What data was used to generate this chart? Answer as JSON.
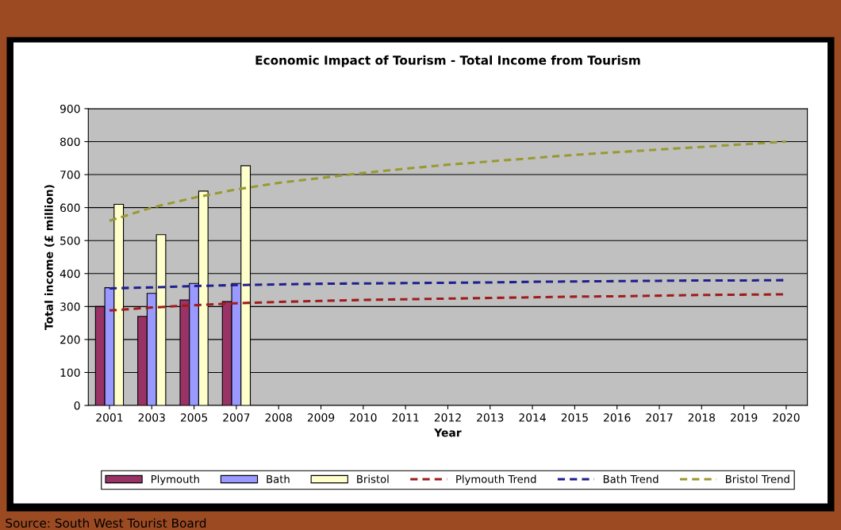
{
  "chart_data": {
    "type": "bar",
    "title": "Economic Impact of Tourism - Total Income from Tourism",
    "xlabel": "Year",
    "ylabel": "Total income (£ million)",
    "categories": [
      "2001",
      "2003",
      "2005",
      "2007",
      "2008",
      "2009",
      "2010",
      "2011",
      "2012",
      "2013",
      "2014",
      "2015",
      "2016",
      "2017",
      "2018",
      "2019",
      "2020"
    ],
    "series": [
      {
        "name": "Plymouth",
        "color": "#993366",
        "values": [
          300,
          270,
          320,
          315,
          null,
          null,
          null,
          null,
          null,
          null,
          null,
          null,
          null,
          null,
          null,
          null,
          null
        ]
      },
      {
        "name": "Bath",
        "color": "#9999ff",
        "values": [
          357,
          340,
          370,
          370,
          null,
          null,
          null,
          null,
          null,
          null,
          null,
          null,
          null,
          null,
          null,
          null,
          null
        ]
      },
      {
        "name": "Bristol",
        "color": "#ffffcc",
        "values": [
          610,
          518,
          650,
          727,
          null,
          null,
          null,
          null,
          null,
          null,
          null,
          null,
          null,
          null,
          null,
          null,
          null
        ]
      },
      {
        "name": "Plymouth Trend",
        "type": "line",
        "line_style": "dashed",
        "color": "#a01c1c",
        "values": [
          288,
          297,
          304,
          310,
          314,
          317,
          320,
          322,
          324,
          326,
          328,
          330,
          331,
          333,
          335,
          336,
          337
        ]
      },
      {
        "name": "Bath Trend",
        "type": "line",
        "line_style": "dashed",
        "color": "#1f1f8f",
        "values": [
          355,
          358,
          362,
          365,
          367,
          369,
          370,
          371,
          372,
          373,
          375,
          376,
          377,
          378,
          379,
          379,
          380
        ]
      },
      {
        "name": "Bristol Trend",
        "type": "line",
        "line_style": "dashed",
        "color": "#999933",
        "values": [
          560,
          600,
          630,
          655,
          675,
          690,
          705,
          718,
          730,
          740,
          750,
          760,
          768,
          776,
          784,
          792,
          800
        ]
      }
    ],
    "ylim": [
      0,
      900
    ],
    "yticks": [
      0,
      100,
      200,
      300,
      400,
      500,
      600,
      700,
      800,
      900
    ],
    "grid": "y",
    "legend": "bottom",
    "annotations": [
      "Source: South West Tourist Board"
    ]
  }
}
